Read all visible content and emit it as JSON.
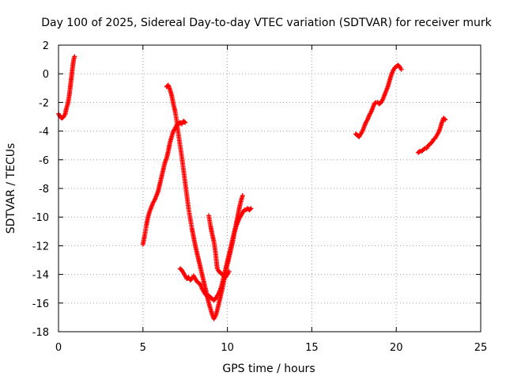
{
  "chart_data": {
    "type": "scatter",
    "title": "Day 100 of 2025, Sidereal Day-to-day VTEC variation (SDTVAR) for receiver murk",
    "xlabel": "GPS time / hours",
    "ylabel": "SDTVAR / TECUs",
    "xlim": [
      0,
      25
    ],
    "ylim": [
      -18,
      2
    ],
    "xticks": [
      "0",
      "5",
      "10",
      "15",
      "20",
      "25"
    ],
    "xtick_values": [
      0,
      5,
      10,
      15,
      20,
      25
    ],
    "yticks": [
      "2",
      "0",
      "-2",
      "-4",
      "-6",
      "-8",
      "-10",
      "-12",
      "-14",
      "-16",
      "-18"
    ],
    "ytick_values": [
      2,
      0,
      -2,
      -4,
      -6,
      -8,
      -10,
      -12,
      -14,
      -16,
      -18
    ],
    "grid": true,
    "marker": "plus",
    "color": "#ff0000",
    "series": [
      {
        "segments": [
          [
            [
              0.0,
              -2.8
            ],
            [
              0.1,
              -3.0
            ],
            [
              0.2,
              -3.1
            ],
            [
              0.3,
              -3.0
            ],
            [
              0.4,
              -2.8
            ],
            [
              0.45,
              -2.5
            ],
            [
              0.5,
              -2.3
            ],
            [
              0.55,
              -2.1
            ],
            [
              0.6,
              -1.8
            ],
            [
              0.65,
              -1.4
            ],
            [
              0.7,
              -0.9
            ],
            [
              0.75,
              -0.4
            ],
            [
              0.8,
              0.1
            ],
            [
              0.85,
              0.6
            ],
            [
              0.9,
              1.0
            ],
            [
              0.95,
              1.2
            ]
          ],
          [
            [
              5.0,
              -11.9
            ],
            [
              5.1,
              -11.3
            ],
            [
              5.2,
              -10.6
            ],
            [
              5.3,
              -10.0
            ],
            [
              5.4,
              -9.6
            ],
            [
              5.5,
              -9.3
            ],
            [
              5.6,
              -9.0
            ],
            [
              5.7,
              -8.8
            ],
            [
              5.8,
              -8.5
            ],
            [
              5.9,
              -8.2
            ],
            [
              6.0,
              -7.7
            ],
            [
              6.1,
              -7.2
            ],
            [
              6.2,
              -6.7
            ],
            [
              6.3,
              -6.2
            ],
            [
              6.4,
              -5.9
            ],
            [
              6.5,
              -5.4
            ],
            [
              6.6,
              -4.8
            ],
            [
              6.7,
              -4.4
            ],
            [
              6.8,
              -4.0
            ],
            [
              6.9,
              -3.8
            ],
            [
              7.0,
              -3.6
            ],
            [
              7.1,
              -3.5
            ],
            [
              7.2,
              -3.4
            ],
            [
              7.3,
              -3.5
            ],
            [
              7.4,
              -3.3
            ],
            [
              7.5,
              -3.4
            ]
          ],
          [
            [
              6.4,
              -0.9
            ],
            [
              6.5,
              -0.8
            ],
            [
              6.6,
              -1.1
            ],
            [
              6.7,
              -1.5
            ],
            [
              6.8,
              -2.1
            ],
            [
              6.9,
              -2.6
            ],
            [
              7.0,
              -3.3
            ],
            [
              7.1,
              -4.2
            ],
            [
              7.2,
              -5.0
            ],
            [
              7.3,
              -5.8
            ],
            [
              7.4,
              -6.7
            ],
            [
              7.5,
              -7.6
            ],
            [
              7.6,
              -8.5
            ],
            [
              7.7,
              -9.4
            ],
            [
              7.8,
              -10.1
            ],
            [
              7.9,
              -10.8
            ],
            [
              8.0,
              -11.4
            ],
            [
              8.1,
              -12.0
            ],
            [
              8.2,
              -12.5
            ],
            [
              8.3,
              -13.0
            ],
            [
              8.4,
              -13.5
            ],
            [
              8.5,
              -14.0
            ],
            [
              8.6,
              -14.5
            ],
            [
              8.7,
              -15.0
            ],
            [
              8.8,
              -15.5
            ],
            [
              8.9,
              -16.0
            ],
            [
              9.0,
              -16.4
            ],
            [
              9.1,
              -16.8
            ],
            [
              9.2,
              -17.1
            ],
            [
              9.3,
              -16.9
            ],
            [
              9.4,
              -16.5
            ],
            [
              9.5,
              -16.0
            ],
            [
              9.6,
              -15.5
            ],
            [
              9.7,
              -15.0
            ],
            [
              9.8,
              -14.4
            ],
            [
              9.9,
              -13.8
            ],
            [
              10.0,
              -13.3
            ],
            [
              10.1,
              -12.8
            ],
            [
              10.2,
              -12.3
            ],
            [
              10.3,
              -11.8
            ],
            [
              10.4,
              -11.2
            ],
            [
              10.5,
              -10.6
            ],
            [
              10.6,
              -10.0
            ],
            [
              10.7,
              -9.4
            ],
            [
              10.8,
              -8.9
            ],
            [
              10.9,
              -8.5
            ]
          ],
          [
            [
              7.2,
              -13.6
            ],
            [
              7.3,
              -13.7
            ],
            [
              7.4,
              -13.9
            ],
            [
              7.5,
              -14.1
            ],
            [
              7.6,
              -14.3
            ],
            [
              7.7,
              -14.2
            ],
            [
              7.8,
              -14.4
            ],
            [
              7.9,
              -14.3
            ],
            [
              8.0,
              -14.1
            ],
            [
              8.1,
              -14.3
            ],
            [
              8.2,
              -14.5
            ],
            [
              8.3,
              -14.6
            ],
            [
              8.4,
              -14.7
            ],
            [
              8.5,
              -15.0
            ],
            [
              8.6,
              -15.2
            ],
            [
              8.7,
              -15.4
            ],
            [
              8.8,
              -15.5
            ],
            [
              8.9,
              -15.5
            ],
            [
              9.0,
              -15.6
            ],
            [
              9.1,
              -15.7
            ],
            [
              9.2,
              -15.8
            ],
            [
              9.3,
              -15.7
            ],
            [
              9.4,
              -15.5
            ],
            [
              9.5,
              -15.3
            ],
            [
              9.6,
              -15.0
            ],
            [
              9.7,
              -14.6
            ],
            [
              9.8,
              -14.1
            ],
            [
              9.9,
              -13.6
            ],
            [
              10.0,
              -13.1
            ],
            [
              10.1,
              -12.6
            ],
            [
              10.2,
              -12.1
            ],
            [
              10.3,
              -11.6
            ],
            [
              10.4,
              -11.1
            ],
            [
              10.5,
              -10.7
            ],
            [
              10.6,
              -10.4
            ],
            [
              10.7,
              -10.1
            ],
            [
              10.8,
              -9.9
            ],
            [
              10.9,
              -9.7
            ],
            [
              11.0,
              -9.5
            ],
            [
              11.1,
              -9.5
            ],
            [
              11.2,
              -9.4
            ],
            [
              11.3,
              -9.5
            ],
            [
              11.4,
              -9.4
            ]
          ],
          [
            [
              8.9,
              -9.9
            ],
            [
              9.0,
              -10.6
            ],
            [
              9.1,
              -11.2
            ],
            [
              9.2,
              -11.7
            ],
            [
              9.3,
              -12.5
            ],
            [
              9.4,
              -13.6
            ],
            [
              9.5,
              -13.8
            ],
            [
              9.6,
              -13.9
            ],
            [
              9.7,
              -14.0
            ],
            [
              9.8,
              -14.1
            ],
            [
              9.9,
              -14.2
            ],
            [
              10.0,
              -14.0
            ],
            [
              10.1,
              -13.8
            ]
          ],
          [
            [
              17.6,
              -4.2
            ],
            [
              17.7,
              -4.3
            ],
            [
              17.8,
              -4.4
            ],
            [
              17.9,
              -4.2
            ],
            [
              18.0,
              -4.0
            ],
            [
              18.1,
              -3.7
            ],
            [
              18.2,
              -3.4
            ],
            [
              18.3,
              -3.2
            ],
            [
              18.4,
              -2.9
            ],
            [
              18.5,
              -2.7
            ],
            [
              18.6,
              -2.4
            ],
            [
              18.7,
              -2.1
            ],
            [
              18.8,
              -2.0
            ],
            [
              18.9,
              -2.0
            ],
            [
              19.0,
              -2.1
            ],
            [
              19.1,
              -2.0
            ],
            [
              19.2,
              -1.8
            ],
            [
              19.3,
              -1.5
            ],
            [
              19.4,
              -1.2
            ],
            [
              19.5,
              -0.9
            ],
            [
              19.6,
              -0.5
            ],
            [
              19.7,
              -0.1
            ],
            [
              19.8,
              0.2
            ],
            [
              19.9,
              0.4
            ],
            [
              20.0,
              0.5
            ],
            [
              20.1,
              0.6
            ],
            [
              20.2,
              0.5
            ],
            [
              20.3,
              0.3
            ]
          ],
          [
            [
              21.3,
              -5.5
            ],
            [
              21.4,
              -5.4
            ],
            [
              21.5,
              -5.4
            ],
            [
              21.6,
              -5.3
            ],
            [
              21.7,
              -5.2
            ],
            [
              21.8,
              -5.2
            ],
            [
              21.9,
              -5.0
            ],
            [
              22.0,
              -4.9
            ],
            [
              22.1,
              -4.8
            ],
            [
              22.2,
              -4.6
            ],
            [
              22.3,
              -4.5
            ],
            [
              22.4,
              -4.3
            ],
            [
              22.5,
              -4.1
            ],
            [
              22.6,
              -3.8
            ],
            [
              22.7,
              -3.4
            ],
            [
              22.8,
              -3.1
            ],
            [
              22.9,
              -3.2
            ]
          ]
        ]
      }
    ]
  }
}
